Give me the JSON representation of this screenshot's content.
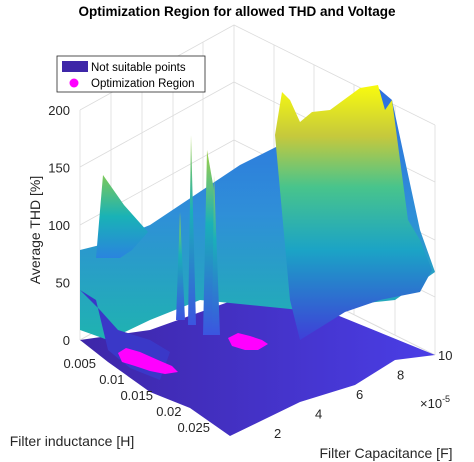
{
  "chart_data": {
    "type": "surface3d",
    "title": "Optimization Region for allowed THD and Voltage",
    "zlabel": "Average THD [%]",
    "ylabel": "Filter inductance [H]",
    "xlabel": "Filter Capacitance [F]",
    "x_exponent_label": "×10",
    "x_exponent_power": "-5",
    "zticks": [
      "0",
      "50",
      "100",
      "150",
      "200"
    ],
    "yticks": [
      "0.005",
      "0.01",
      "0.015",
      "0.02",
      "0.025"
    ],
    "xticks": [
      "2",
      "4",
      "6",
      "8",
      "10"
    ],
    "zlim": [
      0,
      200
    ],
    "ylim": [
      0.0,
      0.025
    ],
    "xlim": [
      1e-05,
      0.0001
    ],
    "colormap": "parula",
    "colors": {
      "low": "#3e26a8",
      "mid": "#1fb3b0",
      "high": "#f9fb0e",
      "region": "#ff00ff"
    },
    "legend": {
      "placement": "top-left",
      "items": [
        {
          "label": "Not suitable points",
          "marker": "patch",
          "color": "#3e26a8"
        },
        {
          "label": "Optimization Region",
          "marker": "dot",
          "color": "#ff00ff"
        }
      ]
    },
    "grid": true,
    "view": "3d-iso"
  }
}
